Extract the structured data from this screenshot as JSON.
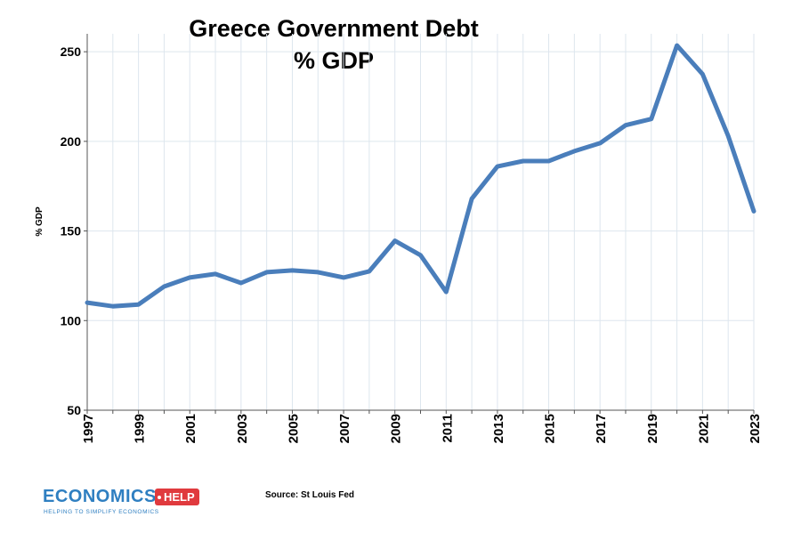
{
  "chart_data": {
    "type": "line",
    "title": "Greece Government Debt",
    "subtitle": "% GDP",
    "ylabel": "% GDP",
    "xlabel": "",
    "ylim": [
      50,
      260
    ],
    "yticks": [
      50,
      100,
      150,
      200,
      250
    ],
    "xticks": [
      1997,
      1999,
      2001,
      2003,
      2005,
      2007,
      2009,
      2011,
      2013,
      2015,
      2017,
      2019,
      2021,
      2023
    ],
    "grid": true,
    "line_color": "#4a7ebb",
    "x": [
      1997,
      1998,
      1999,
      2000,
      2001,
      2002,
      2003,
      2004,
      2005,
      2006,
      2007,
      2008,
      2009,
      2010,
      2011,
      2012,
      2013,
      2014,
      2015,
      2016,
      2017,
      2018,
      2019,
      2020,
      2021,
      2022,
      2023
    ],
    "series": [
      {
        "values": [
          110,
          108,
          109,
          119,
          124,
          126,
          121,
          127,
          128,
          127,
          124,
          127.5,
          144.5,
          136.5,
          116,
          168,
          186,
          189,
          189,
          194.5,
          199,
          209,
          212.5,
          253.5,
          237.5,
          203,
          161
        ]
      }
    ]
  },
  "source": "Source: St Louis Fed",
  "logo": {
    "word": "ECONOMICS",
    "tag": "HELP",
    "tagline": "HELPING TO SIMPLIFY ECONOMICS",
    "primary_color": "#2f7fc1",
    "tag_color": "#e03a3e"
  }
}
